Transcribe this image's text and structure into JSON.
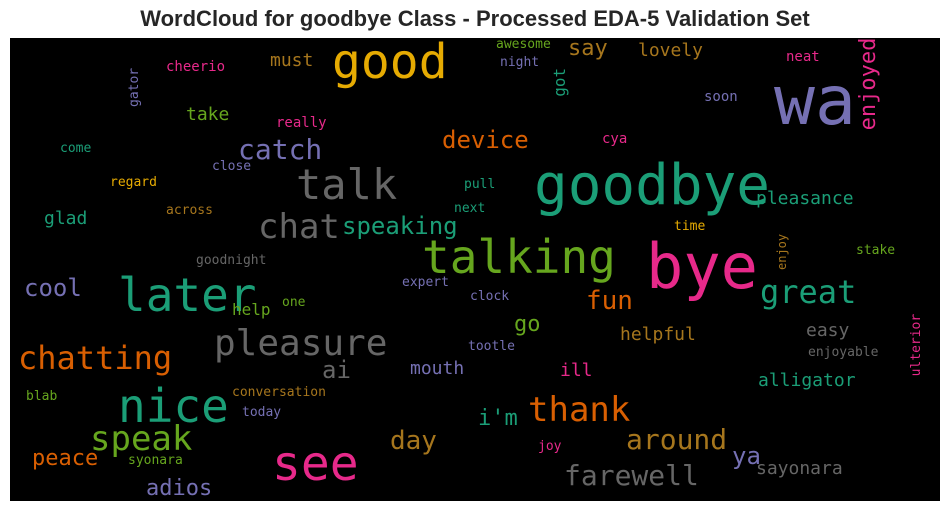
{
  "chart_data": {
    "type": "wordcloud",
    "title": "WordCloud for goodbye Class - Processed EDA-5 Validation Set",
    "words": [
      {
        "text": "wa",
        "color": "#7570b3"
      },
      {
        "text": "bye",
        "color": "#e7298a"
      },
      {
        "text": "goodbye",
        "color": "#1b9e77"
      },
      {
        "text": "good",
        "color": "#e6ab02"
      },
      {
        "text": "talking",
        "color": "#66a61e"
      },
      {
        "text": "see",
        "color": "#e7298a"
      },
      {
        "text": "later",
        "color": "#1b9e77"
      },
      {
        "text": "nice",
        "color": "#1b9e77"
      },
      {
        "text": "talk",
        "color": "#666666"
      },
      {
        "text": "pleasure",
        "color": "#666666"
      },
      {
        "text": "chatting",
        "color": "#d95f02"
      },
      {
        "text": "speak",
        "color": "#66a61e"
      },
      {
        "text": "thank",
        "color": "#d95f02"
      },
      {
        "text": "great",
        "color": "#1b9e77"
      },
      {
        "text": "chat",
        "color": "#666666"
      },
      {
        "text": "catch",
        "color": "#7570b3"
      },
      {
        "text": "farewell",
        "color": "#666666"
      },
      {
        "text": "around",
        "color": "#a6761d"
      },
      {
        "text": "day",
        "color": "#a6761d"
      },
      {
        "text": "enjoyed",
        "color": "#e7298a"
      },
      {
        "text": "device",
        "color": "#d95f02"
      },
      {
        "text": "speaking",
        "color": "#1b9e77"
      },
      {
        "text": "fun",
        "color": "#d95f02"
      },
      {
        "text": "cool",
        "color": "#7570b3"
      },
      {
        "text": "peace",
        "color": "#d95f02"
      },
      {
        "text": "adios",
        "color": "#7570b3"
      },
      {
        "text": "i'm",
        "color": "#1b9e77"
      },
      {
        "text": "ai",
        "color": "#666666"
      },
      {
        "text": "go",
        "color": "#66a61e"
      },
      {
        "text": "ya",
        "color": "#7570b3"
      },
      {
        "text": "say",
        "color": "#a6761d"
      },
      {
        "text": "got",
        "color": "#1b9e77"
      },
      {
        "text": "lovely",
        "color": "#a6761d"
      },
      {
        "text": "sayonara",
        "color": "#666666"
      },
      {
        "text": "pleasance",
        "color": "#1b9e77"
      },
      {
        "text": "helpful",
        "color": "#a6761d"
      },
      {
        "text": "alligator",
        "color": "#1b9e77"
      },
      {
        "text": "mouth",
        "color": "#7570b3"
      },
      {
        "text": "easy",
        "color": "#666666"
      },
      {
        "text": "glad",
        "color": "#1b9e77"
      },
      {
        "text": "take",
        "color": "#66a61e"
      },
      {
        "text": "must",
        "color": "#a6761d"
      },
      {
        "text": "help",
        "color": "#66a61e"
      },
      {
        "text": "ill",
        "color": "#e7298a"
      },
      {
        "text": "cheerio",
        "color": "#e7298a"
      },
      {
        "text": "gator",
        "color": "#7570b3"
      },
      {
        "text": "awesome",
        "color": "#66a61e"
      },
      {
        "text": "night",
        "color": "#7570b3"
      },
      {
        "text": "neat",
        "color": "#e7298a"
      },
      {
        "text": "soon",
        "color": "#7570b3"
      },
      {
        "text": "really",
        "color": "#e7298a"
      },
      {
        "text": "cya",
        "color": "#e7298a"
      },
      {
        "text": "come",
        "color": "#1b9e77"
      },
      {
        "text": "close",
        "color": "#7570b3"
      },
      {
        "text": "regard",
        "color": "#e6ab02"
      },
      {
        "text": "pull",
        "color": "#1b9e77"
      },
      {
        "text": "next",
        "color": "#1b9e77"
      },
      {
        "text": "across",
        "color": "#a6761d"
      },
      {
        "text": "time",
        "color": "#e6ab02"
      },
      {
        "text": "stake",
        "color": "#66a61e"
      },
      {
        "text": "enjoy",
        "color": "#a6761d"
      },
      {
        "text": "goodnight",
        "color": "#666666"
      },
      {
        "text": "expert",
        "color": "#7570b3"
      },
      {
        "text": "clock",
        "color": "#7570b3"
      },
      {
        "text": "one",
        "color": "#66a61e"
      },
      {
        "text": "tootle",
        "color": "#7570b3"
      },
      {
        "text": "enjoyable",
        "color": "#666666"
      },
      {
        "text": "ulterior",
        "color": "#e7298a"
      },
      {
        "text": "conversation",
        "color": "#a6761d"
      },
      {
        "text": "blab",
        "color": "#66a61e"
      },
      {
        "text": "today",
        "color": "#7570b3"
      },
      {
        "text": "joy",
        "color": "#e7298a"
      },
      {
        "text": "syonara",
        "color": "#66a61e"
      }
    ]
  }
}
